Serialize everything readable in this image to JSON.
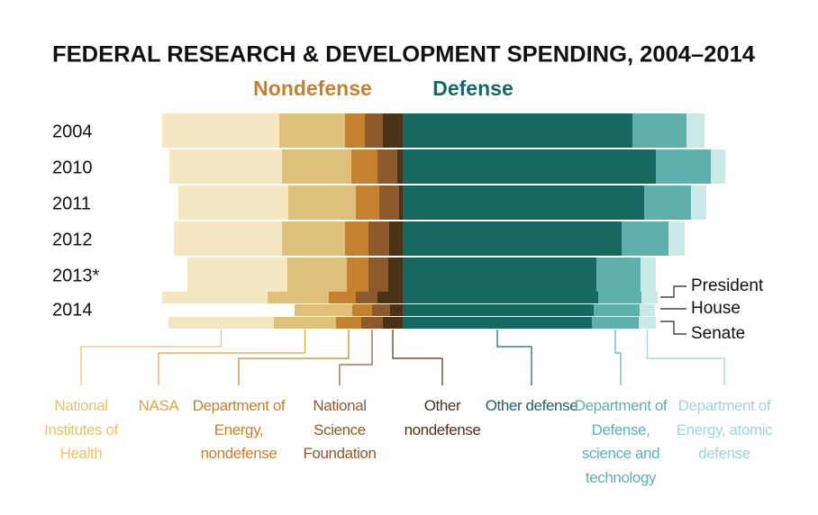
{
  "chart_data": {
    "type": "diverging-bar",
    "title": "FEDERAL RESEARCH & DEVELOPMENT SPENDING, 2004–2014",
    "categories": [
      "2004",
      "2010",
      "2011",
      "2012",
      "2013*",
      null,
      "2014",
      null
    ],
    "row_notes": [
      "President",
      "House",
      "Senate"
    ],
    "groups": [
      {
        "name": "Nondefense",
        "color": "#c4812f",
        "direction": "left",
        "series": [
          {
            "name": "National Institutes of Health",
            "color": "#f6e7c3",
            "label_color": "#e3c36f",
            "values": [
              26,
              25,
              24.4,
              24,
              22.2,
              23.4,
              null,
              23.4
            ]
          },
          {
            "name": "NASA",
            "color": "#dfc07b",
            "label_color": "#d6a83f",
            "values": [
              14.6,
              15.4,
              15,
              14,
              13.2,
              13.6,
              12.8,
              13.8
            ]
          },
          {
            "name": "Department of Energy, nondefense",
            "color": "#c4812f",
            "label_color": "#c4812f",
            "values": [
              4.4,
              5.8,
              5.2,
              5.2,
              4.8,
              6,
              4.4,
              5.6
            ]
          },
          {
            "name": "National Science Foundation",
            "color": "#8c5a2c",
            "label_color": "#8c5a2c",
            "values": [
              4,
              4.4,
              4.4,
              4.6,
              4.4,
              4.8,
              4,
              4.8
            ]
          },
          {
            "name": "Other nondefense",
            "color": "#4a3219",
            "label_color": "#4a3219",
            "values": [
              4.4,
              1.2,
              0.8,
              3,
              3.2,
              5.6,
              2.8,
              4.4
            ]
          }
        ]
      },
      {
        "name": "Defense",
        "color": "#176860",
        "direction": "right",
        "series": [
          {
            "name": "Other defense",
            "color": "#176860",
            "label_color": "#176860",
            "values": [
              51,
              56.2,
              53.6,
              48.6,
              43,
              43.4,
              42.4,
              42
            ]
          },
          {
            "name": "Department of Defense, science and technology",
            "color": "#5fb0ac",
            "label_color": "#5fb0ac",
            "values": [
              12,
              12.2,
              10.4,
              10.4,
              9.8,
              9.6,
              10.2,
              10.4
            ]
          },
          {
            "name": "Department of Energy, atomic defense",
            "color": "#c9e8e6",
            "label_color": "#9fd6d3",
            "values": [
              4,
              3.2,
              3.4,
              3.6,
              3.4,
              3.6,
              3.4,
              3.8
            ]
          }
        ]
      }
    ]
  }
}
